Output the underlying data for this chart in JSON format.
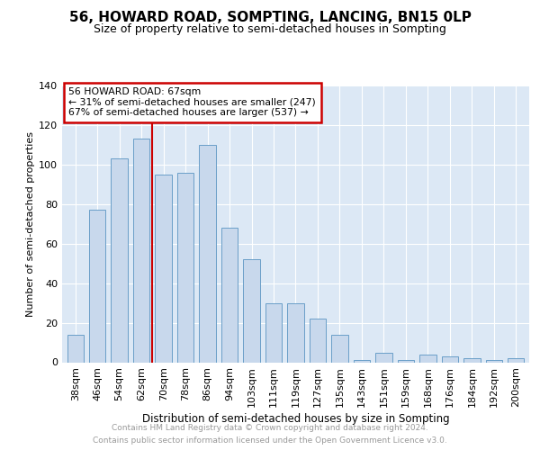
{
  "title": "56, HOWARD ROAD, SOMPTING, LANCING, BN15 0LP",
  "subtitle": "Size of property relative to semi-detached houses in Sompting",
  "xlabel": "Distribution of semi-detached houses by size in Sompting",
  "ylabel": "Number of semi-detached properties",
  "categories": [
    "38sqm",
    "46sqm",
    "54sqm",
    "62sqm",
    "70sqm",
    "78sqm",
    "86sqm",
    "94sqm",
    "103sqm",
    "111sqm",
    "119sqm",
    "127sqm",
    "135sqm",
    "143sqm",
    "151sqm",
    "159sqm",
    "168sqm",
    "176sqm",
    "184sqm",
    "192sqm",
    "200sqm"
  ],
  "values": [
    14,
    77,
    103,
    113,
    95,
    96,
    110,
    68,
    52,
    30,
    30,
    22,
    14,
    1,
    5,
    1,
    4,
    3,
    2,
    1,
    2
  ],
  "bar_color": "#c8d8ec",
  "bar_edge_color": "#6a9fc8",
  "bar_width": 0.75,
  "ylim": [
    0,
    140
  ],
  "yticks": [
    0,
    20,
    40,
    60,
    80,
    100,
    120,
    140
  ],
  "vline_x": 3.5,
  "vline_color": "#cc0000",
  "annotation_text_line1": "56 HOWARD ROAD: 67sqm",
  "annotation_text_line2": "← 31% of semi-detached houses are smaller (247)",
  "annotation_text_line3": "67% of semi-detached houses are larger (537) →",
  "annotation_box_color": "#ffffff",
  "annotation_box_edge_color": "#cc0000",
  "background_color": "#dce8f5",
  "footer_line1": "Contains HM Land Registry data © Crown copyright and database right 2024.",
  "footer_line2": "Contains public sector information licensed under the Open Government Licence v3.0.",
  "grid_color": "#ffffff",
  "title_fontsize": 11,
  "subtitle_fontsize": 9,
  "xlabel_fontsize": 8.5,
  "ylabel_fontsize": 8,
  "tick_fontsize": 8,
  "footer_fontsize": 6.5
}
